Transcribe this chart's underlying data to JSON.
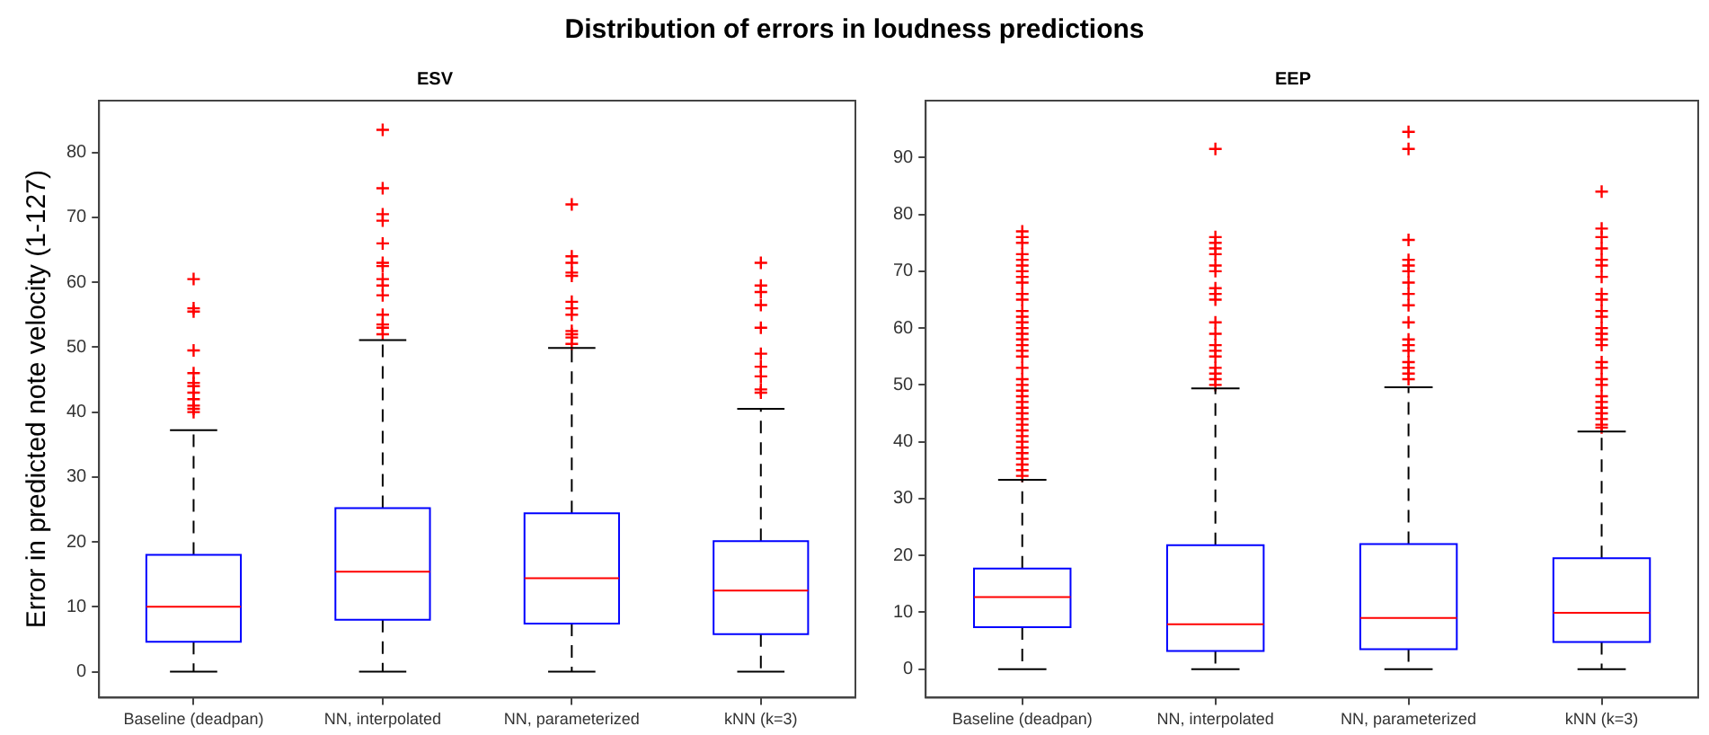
{
  "chart_data": [
    {
      "type": "box",
      "title": "Distribution of errors in loudness predictions",
      "subtitle": "ESV",
      "ylabel": "Error in predicted note velocity (1-127)",
      "categories": [
        "Baseline (deadpan)",
        "NN, interpolated",
        "NN, parameterized",
        "kNN (k=3)"
      ],
      "ylim": [
        -4,
        88
      ],
      "yticks": [
        0,
        10,
        20,
        30,
        40,
        50,
        60,
        70,
        80
      ],
      "grid": false,
      "legend": false,
      "series": [
        {
          "color": "#0000ff",
          "boxes": [
            {
              "low": 0,
              "q1": 4.6,
              "median": 10.0,
              "q3": 18.0,
              "high": 37.2,
              "outliers": [
                40,
                40.5,
                41,
                42,
                43,
                44,
                44.5,
                46,
                49.5,
                55.5,
                56,
                60.5
              ]
            },
            {
              "low": 0,
              "q1": 8.0,
              "median": 15.4,
              "q3": 25.2,
              "high": 51.1,
              "outliers": [
                52,
                53,
                53.5,
                55,
                58,
                59.5,
                60.5,
                62.5,
                63,
                66,
                69.5,
                70.5,
                74.5,
                83.5
              ]
            },
            {
              "low": 0,
              "q1": 7.4,
              "median": 14.4,
              "q3": 24.4,
              "high": 49.9,
              "outliers": [
                50.5,
                51.5,
                52,
                52.5,
                55,
                56,
                57,
                61,
                61.5,
                63,
                64,
                72
              ]
            },
            {
              "low": 0,
              "q1": 5.8,
              "median": 12.5,
              "q3": 20.1,
              "high": 40.5,
              "outliers": [
                43,
                43.5,
                45.5,
                47,
                49,
                53,
                56.5,
                58.5,
                59.5,
                63
              ]
            }
          ]
        }
      ]
    },
    {
      "type": "box",
      "subtitle": "EEP",
      "categories": [
        "Baseline (deadpan)",
        "NN, interpolated",
        "NN, parameterized",
        "kNN (k=3)"
      ],
      "ylim": [
        -5,
        100
      ],
      "yticks": [
        0,
        10,
        20,
        30,
        40,
        50,
        60,
        70,
        80,
        90
      ],
      "grid": false,
      "legend": false,
      "series": [
        {
          "color": "#0000ff",
          "boxes": [
            {
              "low": 0,
              "q1": 7.4,
              "median": 12.7,
              "q3": 17.7,
              "high": 33.3,
              "outliers": [
                34,
                35,
                36,
                37,
                38,
                39,
                40,
                41,
                42,
                43,
                44,
                45,
                46,
                47,
                48,
                49,
                50,
                51,
                53,
                55,
                56,
                57,
                58,
                59,
                60,
                61,
                62,
                63,
                65,
                66,
                68,
                69,
                70,
                71,
                72,
                73,
                75,
                76,
                77
              ]
            },
            {
              "low": 0,
              "q1": 3.2,
              "median": 7.9,
              "q3": 21.8,
              "high": 49.4,
              "outliers": [
                50,
                51,
                52,
                53,
                55,
                56,
                57,
                59,
                61,
                65,
                66,
                67,
                70,
                71,
                73,
                74,
                75,
                76,
                91.5
              ]
            },
            {
              "low": 0,
              "q1": 3.5,
              "median": 9.0,
              "q3": 22.0,
              "high": 49.6,
              "outliers": [
                51,
                52,
                53,
                54,
                56,
                57,
                58,
                61,
                64,
                66,
                68,
                70,
                71,
                72,
                75.5,
                91.5,
                94.5
              ]
            },
            {
              "low": 0,
              "q1": 4.8,
              "median": 9.9,
              "q3": 19.5,
              "high": 41.8,
              "outliers": [
                42.5,
                43,
                44,
                45,
                46,
                47,
                48,
                50,
                51,
                53,
                54,
                57,
                58,
                59,
                60,
                62,
                63,
                65,
                66,
                69,
                71,
                72,
                74,
                76,
                77.5,
                84
              ]
            }
          ]
        }
      ]
    }
  ]
}
